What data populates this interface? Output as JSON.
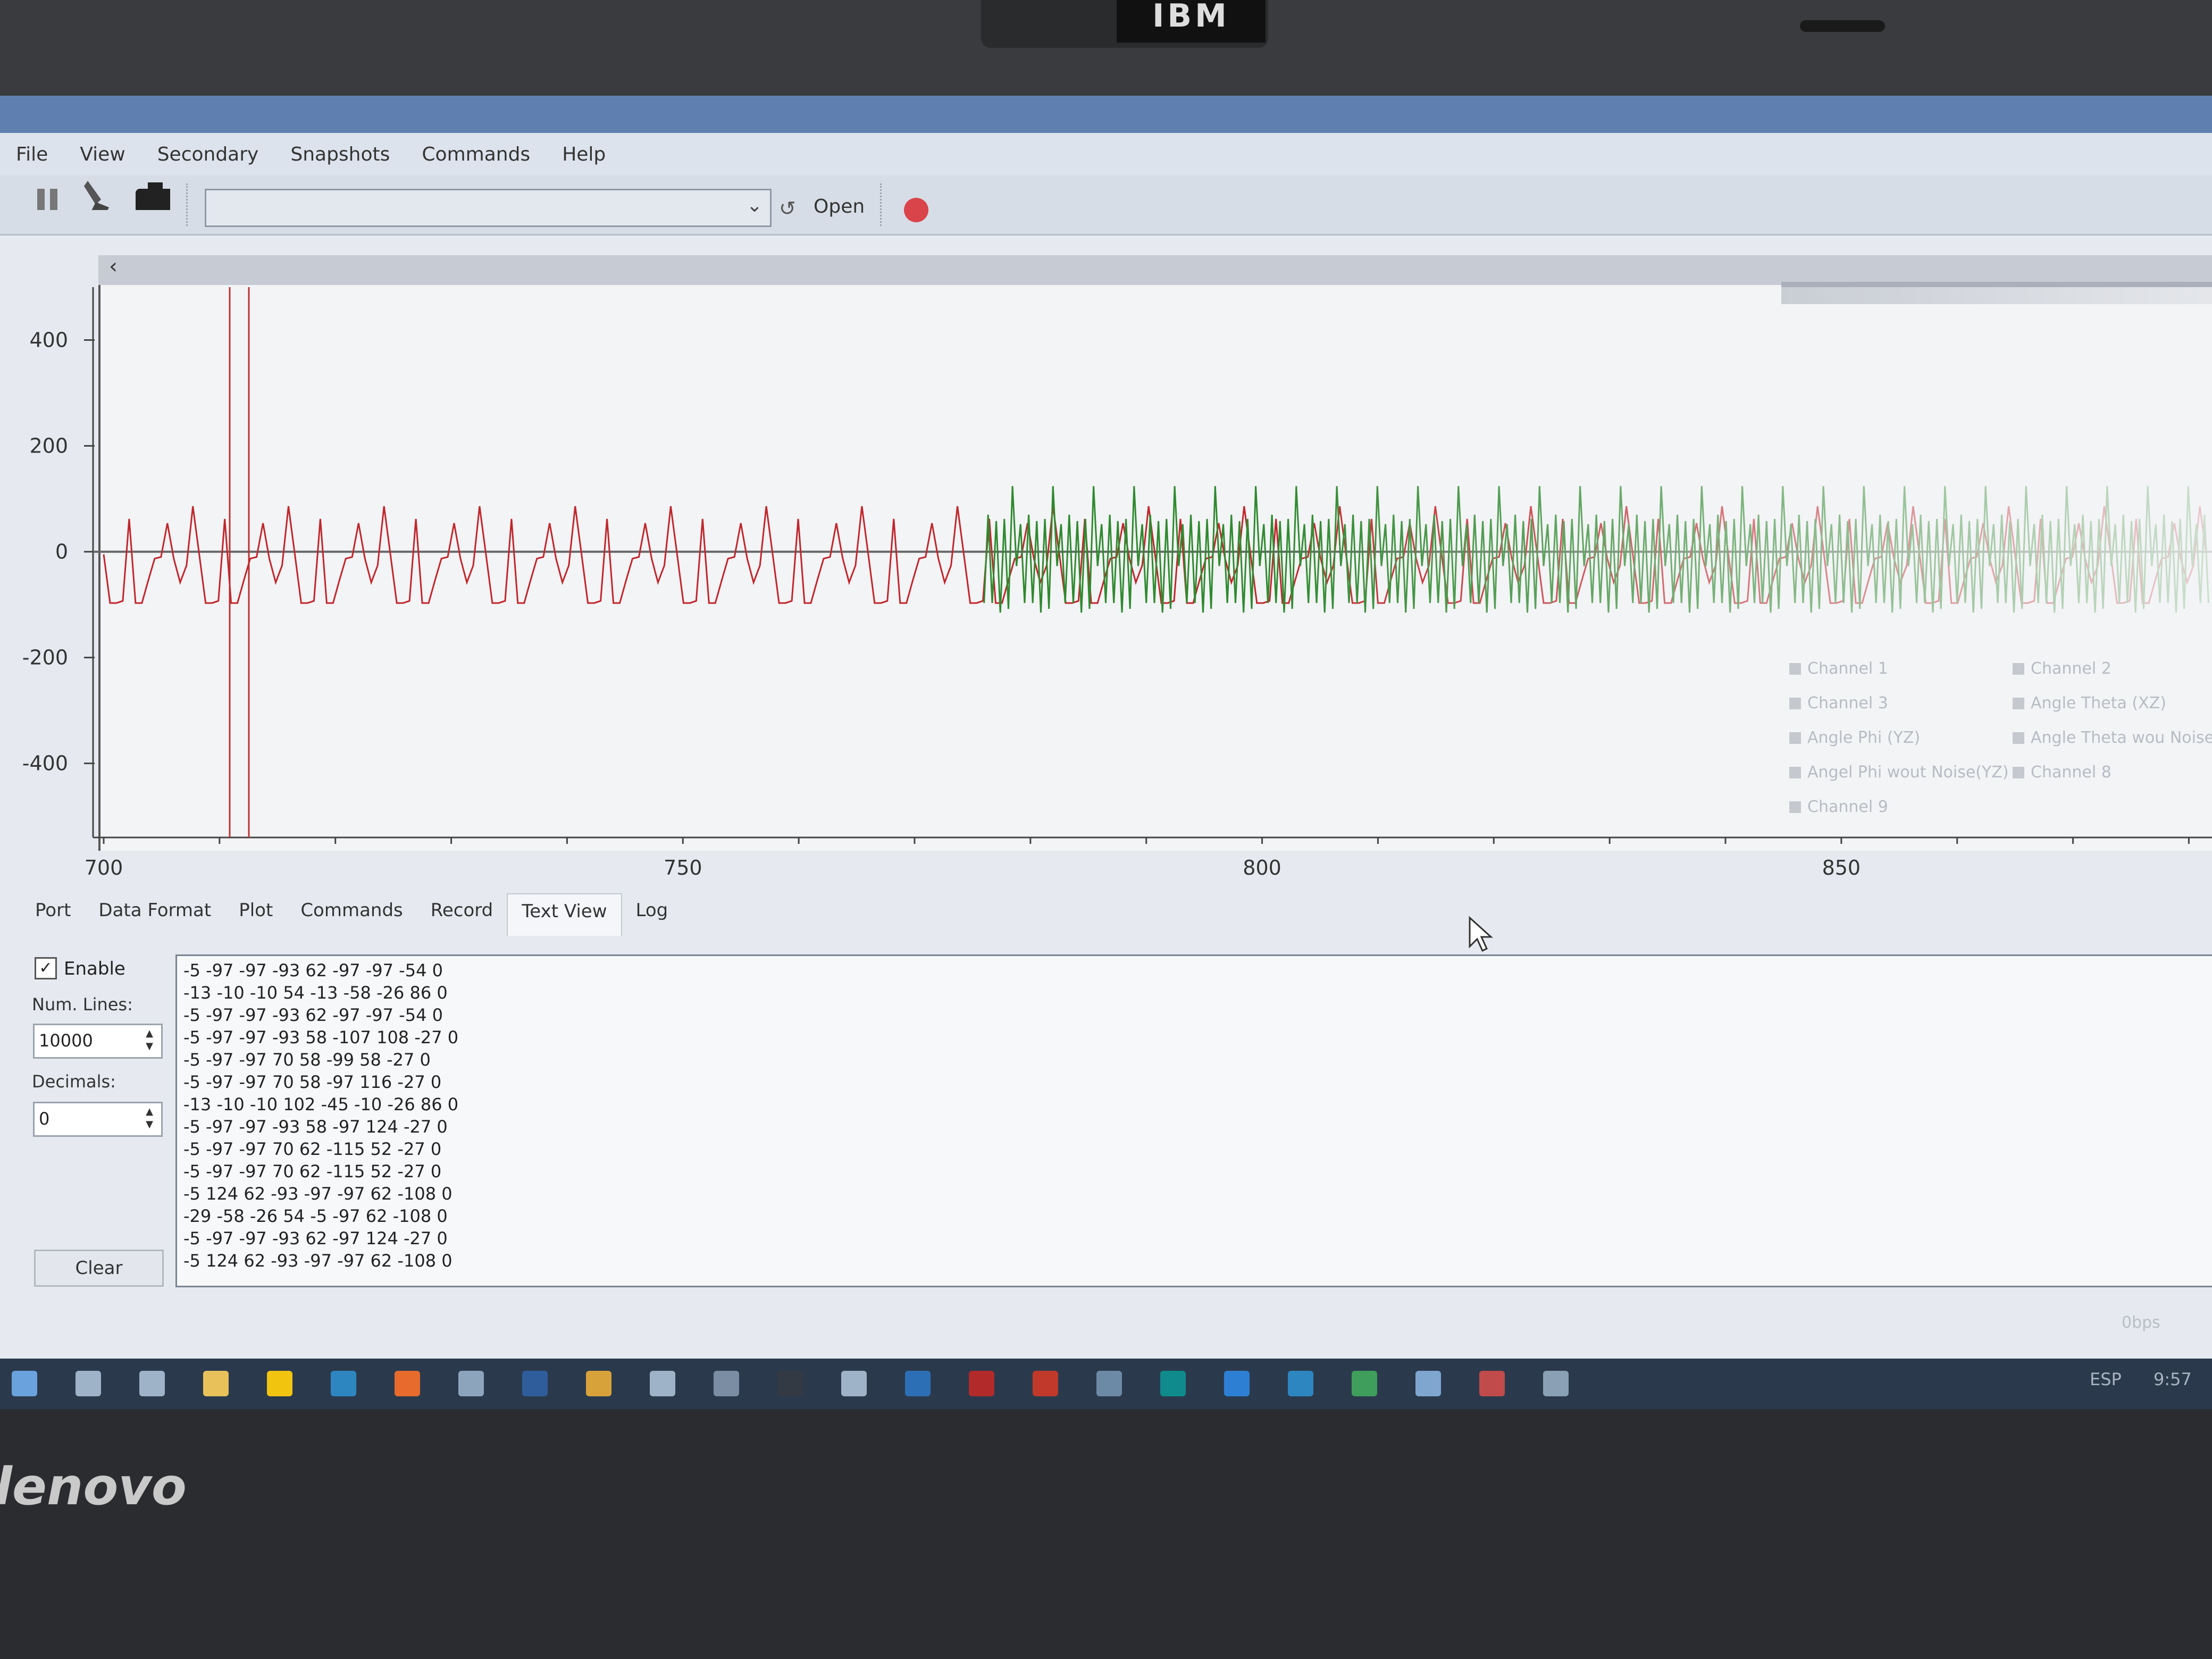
{
  "device": {
    "bezel_logo": "IBM",
    "brand": "lenovo"
  },
  "menu": [
    "File",
    "View",
    "Secondary",
    "Snapshots",
    "Commands",
    "Help"
  ],
  "toolbar": {
    "port_value": "",
    "open_label": "Open"
  },
  "chart_data": {
    "type": "line",
    "x_ticks": [
      "700",
      "750",
      "800",
      "850"
    ],
    "y_ticks": [
      "400",
      "200",
      "0",
      "-200",
      "-400"
    ],
    "xlim": [
      700,
      882
    ],
    "ylim": [
      -540,
      500
    ],
    "grid": false,
    "legend_position": "bottom-right",
    "legend": [
      "Channel 1",
      "Channel 2",
      "Channel 3",
      "Angle Theta (XZ)",
      "Angle Phi (YZ)",
      "Angle Theta wou Noise(",
      "Angel Phi wout Noise(YZ)",
      "Channel 8",
      "Channel 9"
    ],
    "series": [
      {
        "name": "Channel 1",
        "color": "#c0272d",
        "x_range": [
          700,
          882
        ],
        "pattern": [
          -5,
          -97,
          -97,
          -93,
          62,
          -97,
          -97,
          -54,
          -13,
          -10,
          54,
          -13,
          -58,
          -26,
          86
        ]
      },
      {
        "name": "Channel 2",
        "color": "#2f8a2f",
        "x_range": [
          776,
          882
        ],
        "pattern": [
          -97,
          70,
          -97,
          58,
          -115,
          62,
          -108,
          124,
          -27,
          52
        ]
      }
    ]
  },
  "tabs": [
    "Port",
    "Data Format",
    "Plot",
    "Commands",
    "Record",
    "Text View",
    "Log"
  ],
  "active_tab": "Text View",
  "text_view": {
    "enable_label": "Enable",
    "enable_checked": "✓",
    "num_lines_label": "Num. Lines:",
    "num_lines_value": "10000",
    "decimals_label": "Decimals:",
    "decimals_value": "0",
    "clear_label": "Clear",
    "lines": [
      "-5 -97 -97 -93 62 -97 -97 -54 0",
      "-13 -10 -10 54 -13 -58 -26 86 0",
      "-5 -97 -97 -93 62 -97 -97 -54 0",
      "-5 -97 -97 -93 58 -107 108 -27 0",
      "-5 -97 -97 70 58 -99 58 -27 0",
      "-5 -97 -97 70 58 -97 116 -27 0",
      "-13 -10 -10 102 -45 -10 -26 86 0",
      "-5 -97 -97 -93 58 -97 124 -27 0",
      "-5 -97 -97 70 62 -115 52 -27 0",
      "-5 -97 -97 70 62 -115 52 -27 0",
      "-5 124 62 -93 -97 -97 62 -108 0",
      "-29 -58 -26 54 -5 -97 62 -108 0",
      "-5 -97 -97 -93 62 -97 124 -27 0",
      "-5 124 62 -93 -97 -97 62 -108 0"
    ]
  },
  "status": {
    "bps": "0bps"
  },
  "taskbar": {
    "lang": "ESP",
    "time": "9:57"
  }
}
